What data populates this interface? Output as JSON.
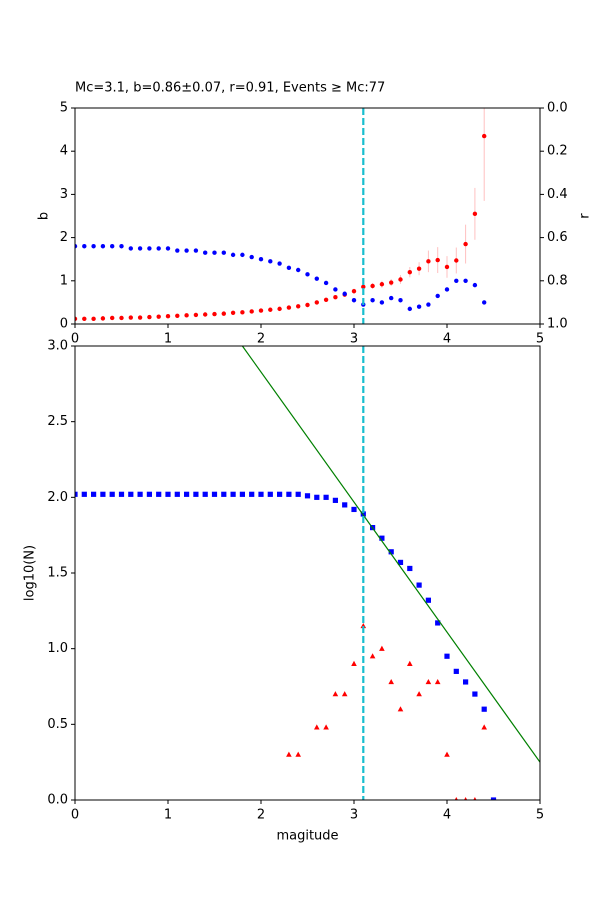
{
  "chart_data": [
    {
      "type": "scatter",
      "title": "Mc=3.1, b=0.86±0.07, r=0.91, Events ≥ Mc:77",
      "ylabel": "b",
      "y2label": "r",
      "xlim": [
        0,
        5
      ],
      "xticks": [
        0,
        1,
        2,
        3,
        4,
        5
      ],
      "ylim": [
        0,
        5
      ],
      "yticks": [
        0,
        1,
        2,
        3,
        4,
        5
      ],
      "y2lim": [
        1,
        0
      ],
      "y2ticks": [
        {
          "value": 0,
          "label": "0.0"
        },
        0.2,
        0.4,
        0.6,
        0.8,
        {
          "value": 1,
          "label": "1.0"
        }
      ],
      "vline": 3.1,
      "vline_color": "#17becf",
      "series": [
        {
          "color": "#ff0000",
          "marker": "circle",
          "error_color": "#ffc0c0",
          "x": [
            0,
            0.1,
            0.2,
            0.3,
            0.4,
            0.5,
            0.6,
            0.7,
            0.8,
            0.9,
            1.0,
            1.1,
            1.2,
            1.3,
            1.4,
            1.5,
            1.6,
            1.7,
            1.8,
            1.9,
            2.0,
            2.1,
            2.2,
            2.3,
            2.4,
            2.5,
            2.6,
            2.7,
            2.8,
            2.9,
            3.0,
            3.1,
            3.2,
            3.3,
            3.4,
            3.5,
            3.6,
            3.7,
            3.8,
            3.9,
            4.0,
            4.1,
            4.2,
            4.3,
            4.4
          ],
          "values": [
            0.12,
            0.12,
            0.12,
            0.13,
            0.14,
            0.14,
            0.15,
            0.15,
            0.16,
            0.17,
            0.18,
            0.19,
            0.2,
            0.21,
            0.22,
            0.23,
            0.24,
            0.26,
            0.27,
            0.29,
            0.31,
            0.33,
            0.35,
            0.38,
            0.41,
            0.44,
            0.5,
            0.56,
            0.62,
            0.68,
            0.76,
            0.86,
            0.88,
            0.92,
            0.96,
            1.03,
            1.2,
            1.28,
            1.45,
            1.48,
            1.32,
            1.47,
            1.85,
            2.55,
            4.35
          ],
          "errors": [
            0.01,
            0.01,
            0.01,
            0.01,
            0.01,
            0.01,
            0.01,
            0.01,
            0.01,
            0.01,
            0.01,
            0.01,
            0.01,
            0.01,
            0.01,
            0.01,
            0.01,
            0.01,
            0.01,
            0.01,
            0.01,
            0.02,
            0.02,
            0.02,
            0.03,
            0.03,
            0.03,
            0.04,
            0.04,
            0.05,
            0.06,
            0.07,
            0.07,
            0.08,
            0.08,
            0.1,
            0.12,
            0.15,
            0.25,
            0.3,
            0.25,
            0.3,
            0.45,
            0.6,
            1.5
          ]
        },
        {
          "color": "#0000ff",
          "marker": "circle",
          "axis": "y2",
          "x": [
            0,
            0.1,
            0.2,
            0.3,
            0.4,
            0.5,
            0.6,
            0.7,
            0.8,
            0.9,
            1.0,
            1.1,
            1.2,
            1.3,
            1.4,
            1.5,
            1.6,
            1.7,
            1.8,
            1.9,
            2.0,
            2.1,
            2.2,
            2.3,
            2.4,
            2.5,
            2.6,
            2.7,
            2.8,
            2.9,
            3.0,
            3.1,
            3.2,
            3.3,
            3.4,
            3.5,
            3.6,
            3.7,
            3.8,
            3.9,
            4.0,
            4.1,
            4.2,
            4.3,
            4.4
          ],
          "values": [
            0.64,
            0.64,
            0.64,
            0.64,
            0.64,
            0.64,
            0.65,
            0.65,
            0.65,
            0.65,
            0.65,
            0.66,
            0.66,
            0.66,
            0.67,
            0.67,
            0.67,
            0.68,
            0.68,
            0.69,
            0.7,
            0.71,
            0.72,
            0.74,
            0.75,
            0.77,
            0.79,
            0.81,
            0.84,
            0.86,
            0.89,
            0.91,
            0.89,
            0.9,
            0.88,
            0.89,
            0.93,
            0.92,
            0.91,
            0.87,
            0.84,
            0.8,
            0.8,
            0.82,
            0.9
          ]
        }
      ]
    },
    {
      "type": "scatter",
      "xlabel": "magitude",
      "ylabel": "log10(N)",
      "xlim": [
        0,
        5
      ],
      "xticks": [
        0,
        1,
        2,
        3,
        4,
        5
      ],
      "ylim": [
        0,
        3
      ],
      "yticks": [
        {
          "value": 0,
          "label": "0.0"
        },
        0.5,
        {
          "value": 1,
          "label": "1.0"
        },
        1.5,
        {
          "value": 2,
          "label": "2.0"
        },
        2.5,
        {
          "value": 3,
          "label": "3.0"
        }
      ],
      "vline": 3.1,
      "vline_color": "#17becf",
      "series": [
        {
          "color": "#0000ff",
          "marker": "square",
          "x": [
            0,
            0.1,
            0.2,
            0.3,
            0.4,
            0.5,
            0.6,
            0.7,
            0.8,
            0.9,
            1.0,
            1.1,
            1.2,
            1.3,
            1.4,
            1.5,
            1.6,
            1.7,
            1.8,
            1.9,
            2.0,
            2.1,
            2.2,
            2.3,
            2.4,
            2.5,
            2.6,
            2.7,
            2.8,
            2.9,
            3.0,
            3.1,
            3.2,
            3.3,
            3.4,
            3.5,
            3.6,
            3.7,
            3.8,
            3.9,
            4.0,
            4.1,
            4.2,
            4.3,
            4.4,
            4.5
          ],
          "values": [
            2.02,
            2.02,
            2.02,
            2.02,
            2.02,
            2.02,
            2.02,
            2.02,
            2.02,
            2.02,
            2.02,
            2.02,
            2.02,
            2.02,
            2.02,
            2.02,
            2.02,
            2.02,
            2.02,
            2.02,
            2.02,
            2.02,
            2.02,
            2.02,
            2.02,
            2.01,
            2.0,
            2.0,
            1.98,
            1.95,
            1.92,
            1.89,
            1.8,
            1.73,
            1.64,
            1.57,
            1.53,
            1.42,
            1.32,
            1.17,
            0.95,
            0.85,
            0.78,
            0.7,
            0.6,
            0.0
          ]
        },
        {
          "color": "#ff0000",
          "marker": "triangle",
          "x": [
            2.3,
            2.4,
            2.6,
            2.7,
            2.8,
            2.9,
            3.0,
            3.1,
            3.2,
            3.3,
            3.4,
            3.5,
            3.6,
            3.7,
            3.8,
            3.9,
            4.0,
            4.1,
            4.2,
            4.3,
            4.4
          ],
          "values": [
            0.3,
            0.3,
            0.48,
            0.48,
            0.7,
            0.7,
            0.9,
            1.15,
            0.95,
            1.0,
            0.78,
            0.6,
            0.9,
            0.7,
            0.78,
            0.78,
            0.3,
            0,
            0,
            0,
            0.48
          ]
        },
        {
          "color": "#008000",
          "marker": "line",
          "x": [
            1.8,
            5
          ],
          "values": [
            3.0,
            0.25
          ]
        }
      ]
    }
  ]
}
